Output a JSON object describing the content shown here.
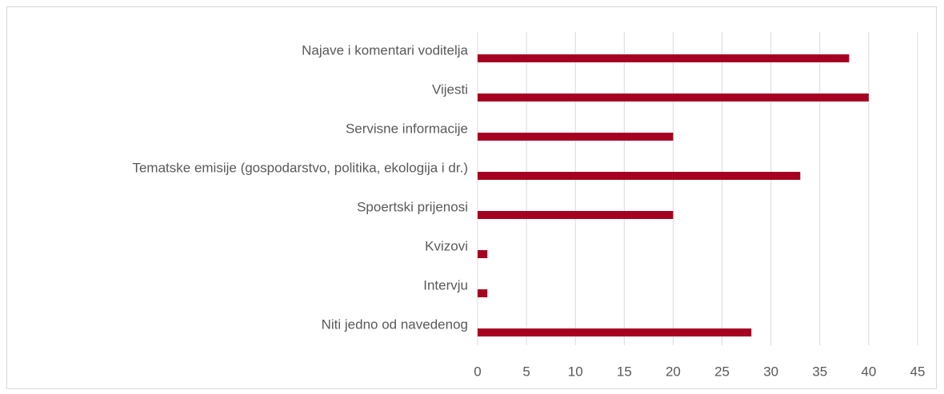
{
  "chart_data": {
    "type": "bar",
    "orientation": "horizontal",
    "categories": [
      "Najave i komentari voditelja",
      "Vijesti",
      "Servisne informacije",
      "Tematske emisije (gospodarstvo, politika, ekologija i dr.)",
      "Spoertski prijenosi",
      "Kvizovi",
      "Intervju",
      "Niti jedno od navedenog"
    ],
    "values": [
      38,
      40,
      20,
      33,
      20,
      1,
      1,
      28
    ],
    "color": "#a50021",
    "xlim": [
      0,
      45
    ],
    "xticks": [
      0,
      5,
      10,
      15,
      20,
      25,
      30,
      35,
      40,
      45
    ],
    "grid": true
  }
}
